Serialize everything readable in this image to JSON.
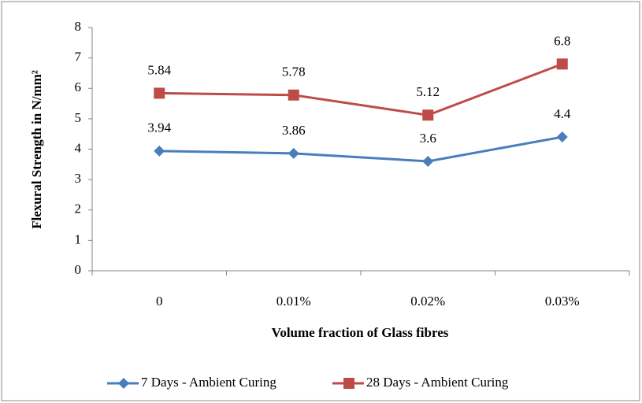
{
  "chart_data": {
    "type": "line",
    "x_label": "Volume fraction of Glass fibres",
    "y_label": "Flexural Strength in N/mm²",
    "categories": [
      "0",
      "0.01%",
      "0.02%",
      "0.03%"
    ],
    "series": [
      {
        "name": "7 Days - Ambient Curing",
        "color": "#4a7ebb",
        "marker": "diamond",
        "values": [
          3.94,
          3.86,
          3.6,
          4.4
        ]
      },
      {
        "name": "28 Days - Ambient Curing",
        "color": "#be4b48",
        "marker": "square",
        "values": [
          5.84,
          5.78,
          5.12,
          6.8
        ]
      }
    ],
    "ylim": [
      0,
      8
    ],
    "yticks": [
      0,
      1,
      2,
      3,
      4,
      5,
      6,
      7,
      8
    ],
    "grid": false,
    "legend": "bottom"
  }
}
